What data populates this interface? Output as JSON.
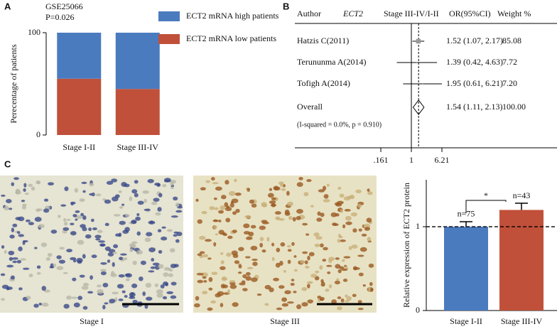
{
  "chart_data": [
    {
      "type": "stacked_bar",
      "panel": "A",
      "title": [
        "GSE25066",
        "P=0.026"
      ],
      "y_label": "Perecentage of patients",
      "categories": [
        "Stage I-II",
        "Stage III-IV"
      ],
      "series": [
        {
          "name": "ECT2 mRNA high patients",
          "color": "#4b7bbf",
          "values": [
            45,
            55
          ]
        },
        {
          "name": "ECT2 mRNA low patients",
          "color": "#c0503a",
          "values": [
            55,
            45
          ]
        }
      ],
      "ylim": [
        0,
        100
      ],
      "yticks": [
        0,
        100
      ]
    },
    {
      "type": "forest",
      "panel": "B",
      "columns": [
        "Author",
        "ECT2",
        "Stage III-IV/I-II",
        "OR(95%CI)",
        "Weight %"
      ],
      "studies": [
        "Hatzis C(2011)",
        "Terununma A(2014)",
        "Tofigh A(2014)"
      ],
      "or": [
        1.52,
        1.39,
        1.95
      ],
      "ci_low": [
        1.07,
        0.42,
        0.61
      ],
      "ci_high": [
        2.17,
        4.63,
        6.21
      ],
      "or_labels": [
        "1.52 (1.07, 2.17)",
        "1.39 (0.42, 4.63)",
        "1.95 (0.61, 6.21)"
      ],
      "weight": [
        85.08,
        7.72,
        7.2
      ],
      "weight_labels": [
        "85.08",
        "7.72",
        "7.20"
      ],
      "overall": {
        "name": "Overall",
        "or": 1.54,
        "ci_low": 1.11,
        "ci_high": 2.13,
        "or_label": "1.54 (1.11, 2.13)",
        "weight": 100,
        "weight_label": "100.00"
      },
      "heterogeneity": "(I-squared = 0.0%, p = 0.910)",
      "log_scale": true,
      "xlim": [
        0.161,
        6.21
      ],
      "xticks": [
        {
          "value": 0.161,
          "label": ".161"
        },
        1,
        6.21
      ]
    },
    {
      "type": "bar",
      "panel": "C",
      "y_label": "Relative expression of ECT2 protein",
      "images": [
        "Stage I",
        "Stage III"
      ],
      "categories": [
        "Stage I-II",
        "Stage III-IV"
      ],
      "values": [
        1.0,
        1.2
      ],
      "errors": [
        0.06,
        0.08
      ],
      "colors": [
        "#4b7bbf",
        "#c0503a"
      ],
      "value_labels": [
        "n=75",
        "n=43"
      ],
      "significance": "*",
      "reference_line": 1,
      "ylim": [
        0,
        1.56
      ],
      "yticks": [
        0,
        1
      ]
    }
  ]
}
